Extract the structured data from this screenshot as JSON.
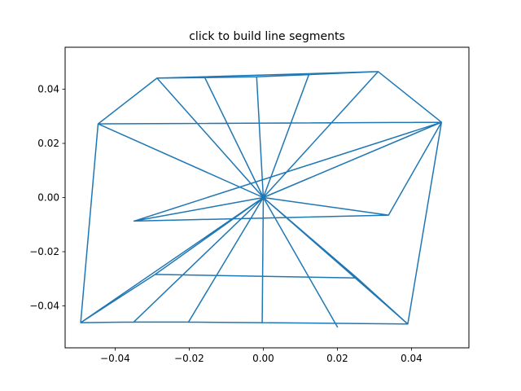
{
  "chart_data": {
    "type": "line",
    "title": "click to build line segments",
    "xlabel": "",
    "ylabel": "",
    "xlim": [
      -0.0535,
      0.0555
    ],
    "ylim": [
      -0.0555,
      0.0555
    ],
    "x_ticks": [
      -0.04,
      -0.02,
      0.0,
      0.02,
      0.04
    ],
    "x_tick_labels": [
      "−0.04",
      "−0.02",
      "0.00",
      "0.02",
      "0.04"
    ],
    "y_ticks": [
      -0.04,
      -0.02,
      0.0,
      0.02,
      0.04
    ],
    "y_tick_labels": [
      "−0.04",
      "−0.02",
      "0.00",
      "0.02",
      "0.04"
    ],
    "grid": false,
    "line_color": "#1f77b4",
    "series": [
      {
        "x": [
          0.0,
          -0.0287,
          0.0,
          -0.0158,
          0.0,
          -0.0018,
          0.0,
          0.0123,
          0.0,
          0.031,
          0.0,
          0.0481,
          0.0,
          0.0338,
          0.0,
          0.0253,
          0.0,
          0.039,
          0.0,
          0.02,
          0.0,
          -0.0003,
          0.0,
          -0.0202,
          0.0,
          -0.035,
          0.0,
          -0.0493,
          0.0,
          -0.0292,
          0.0,
          -0.0349,
          0.0,
          -0.0446,
          0.0,
          -0.0287,
          -0.0158,
          -0.0018,
          0.0123,
          0.031,
          0.0481,
          0.0338,
          -0.0349,
          0.0481,
          -0.0446,
          -0.0287,
          0.031,
          0.0481,
          0.039,
          0.0253,
          -0.0292,
          -0.0493,
          -0.0446,
          -0.0493,
          -0.035,
          -0.0202,
          -0.0003,
          0.039,
          0.0481,
          0.0,
          0.0477
        ],
        "y": [
          0.0,
          0.0441,
          0.0,
          0.0443,
          0.0,
          0.0446,
          0.0,
          0.0454,
          0.0,
          0.0465,
          0.0,
          0.0278,
          0.0,
          -0.0065,
          0.0,
          -0.0297,
          0.0,
          -0.0467,
          0.0,
          -0.0478,
          0.0,
          -0.0462,
          0.0,
          -0.046,
          0.0,
          -0.046,
          0.0,
          -0.0462,
          0.0,
          -0.0284,
          0.0,
          -0.0087,
          0.0,
          0.0272,
          0.0,
          0.0441,
          0.0443,
          0.0446,
          0.0454,
          0.0465,
          0.0278,
          -0.0065,
          -0.0087,
          0.0278,
          0.0272,
          0.0441,
          0.0465,
          0.0278,
          -0.0467,
          -0.0297,
          -0.0284,
          -0.0462,
          0.0272,
          -0.0462,
          -0.046,
          -0.046,
          -0.0462,
          -0.0467,
          0.0278,
          0.0,
          0.0276
        ]
      }
    ]
  }
}
